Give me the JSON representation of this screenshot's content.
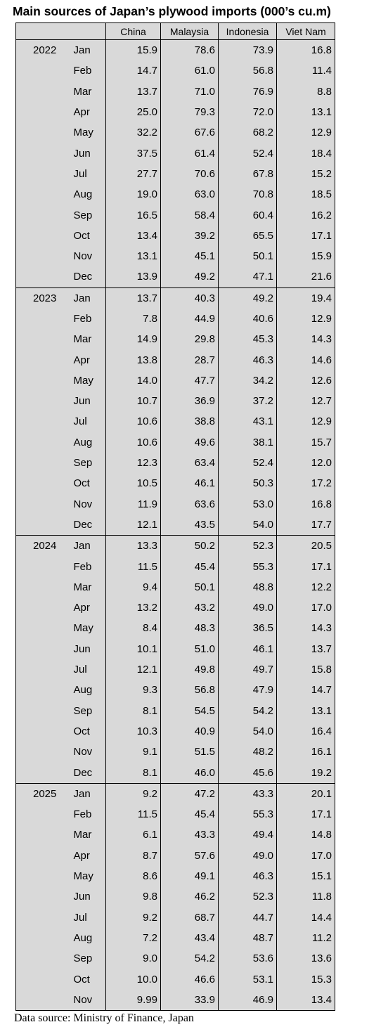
{
  "title": "Main sources of Japan’s plywood imports (000’s cu.m)",
  "table": {
    "columns": [
      "China",
      "Malaysia",
      "Indonesia",
      "Viet Nam"
    ],
    "groups": [
      {
        "year": "2022",
        "rows": [
          [
            "Jan",
            "15.9",
            "78.6",
            "73.9",
            "16.8"
          ],
          [
            "Feb",
            "14.7",
            "61.0",
            "56.8",
            "11.4"
          ],
          [
            "Mar",
            "13.7",
            "71.0",
            "76.9",
            "8.8"
          ],
          [
            "Apr",
            "25.0",
            "79.3",
            "72.0",
            "13.1"
          ],
          [
            "May",
            "32.2",
            "67.6",
            "68.2",
            "12.9"
          ],
          [
            "Jun",
            "37.5",
            "61.4",
            "52.4",
            "18.4"
          ],
          [
            "Jul",
            "27.7",
            "70.6",
            "67.8",
            "15.2"
          ],
          [
            "Aug",
            "19.0",
            "63.0",
            "70.8",
            "18.5"
          ],
          [
            "Sep",
            "16.5",
            "58.4",
            "60.4",
            "16.2"
          ],
          [
            "Oct",
            "13.4",
            "39.2",
            "65.5",
            "17.1"
          ],
          [
            "Nov",
            "13.1",
            "45.1",
            "50.1",
            "15.9"
          ],
          [
            "Dec",
            "13.9",
            "49.2",
            "47.1",
            "21.6"
          ]
        ]
      },
      {
        "year": "2023",
        "rows": [
          [
            "Jan",
            "13.7",
            "40.3",
            "49.2",
            "19.4"
          ],
          [
            "Feb",
            "7.8",
            "44.9",
            "40.6",
            "12.9"
          ],
          [
            "Mar",
            "14.9",
            "29.8",
            "45.3",
            "14.3"
          ],
          [
            "Apr",
            "13.8",
            "28.7",
            "46.3",
            "14.6"
          ],
          [
            "May",
            "14.0",
            "47.7",
            "34.2",
            "12.6"
          ],
          [
            "Jun",
            "10.7",
            "36.9",
            "37.2",
            "12.7"
          ],
          [
            "Jul",
            "10.6",
            "38.8",
            "43.1",
            "12.9"
          ],
          [
            "Aug",
            "10.6",
            "49.6",
            "38.1",
            "15.7"
          ],
          [
            "Sep",
            "12.3",
            "63.4",
            "52.4",
            "12.0"
          ],
          [
            "Oct",
            "10.5",
            "46.1",
            "50.3",
            "17.2"
          ],
          [
            "Nov",
            "11.9",
            "63.6",
            "53.0",
            "16.8"
          ],
          [
            "Dec",
            "12.1",
            "43.5",
            "54.0",
            "17.7"
          ]
        ]
      },
      {
        "year": "2024",
        "rows": [
          [
            "Jan",
            "13.3",
            "50.2",
            "52.3",
            "20.5"
          ],
          [
            "Feb",
            "11.5",
            "45.4",
            "55.3",
            "17.1"
          ],
          [
            "Mar",
            "9.4",
            "50.1",
            "48.8",
            "12.2"
          ],
          [
            "Apr",
            "13.2",
            "43.2",
            "49.0",
            "17.0"
          ],
          [
            "May",
            "8.4",
            "48.3",
            "36.5",
            "14.3"
          ],
          [
            "Jun",
            "10.1",
            "51.0",
            "46.1",
            "13.7"
          ],
          [
            "Jul",
            "12.1",
            "49.8",
            "49.7",
            "15.8"
          ],
          [
            "Aug",
            "9.3",
            "56.8",
            "47.9",
            "14.7"
          ],
          [
            "Sep",
            "8.1",
            "54.5",
            "54.2",
            "13.1"
          ],
          [
            "Oct",
            "10.3",
            "40.9",
            "54.0",
            "16.4"
          ],
          [
            "Nov",
            "9.1",
            "51.5",
            "48.2",
            "16.1"
          ],
          [
            "Dec",
            "8.1",
            "46.0",
            "45.6",
            "19.2"
          ]
        ]
      },
      {
        "year": "2025",
        "rows": [
          [
            "Jan",
            "9.2",
            "47.2",
            "43.3",
            "20.1"
          ],
          [
            "Feb",
            "11.5",
            "45.4",
            "55.3",
            "17.1"
          ],
          [
            "Mar",
            "6.1",
            "43.3",
            "49.4",
            "14.8"
          ],
          [
            "Apr",
            "8.7",
            "57.6",
            "49.0",
            "17.0"
          ],
          [
            "May",
            "8.6",
            "49.1",
            "46.3",
            "15.1"
          ],
          [
            "Jun",
            "9.8",
            "46.2",
            "52.3",
            "11.8"
          ],
          [
            "Jul",
            "9.2",
            "68.7",
            "44.7",
            "14.4"
          ],
          [
            "Aug",
            "7.2",
            "43.4",
            "48.7",
            "11.2"
          ],
          [
            "Sep",
            "9.0",
            "54.2",
            "53.6",
            "13.6"
          ],
          [
            "Oct",
            "10.0",
            "46.6",
            "53.1",
            "15.3"
          ],
          [
            "Nov",
            "9.99",
            "33.9",
            "46.9",
            "13.4"
          ]
        ]
      }
    ]
  },
  "footer": "Data source: Ministry of Finance, Japan"
}
